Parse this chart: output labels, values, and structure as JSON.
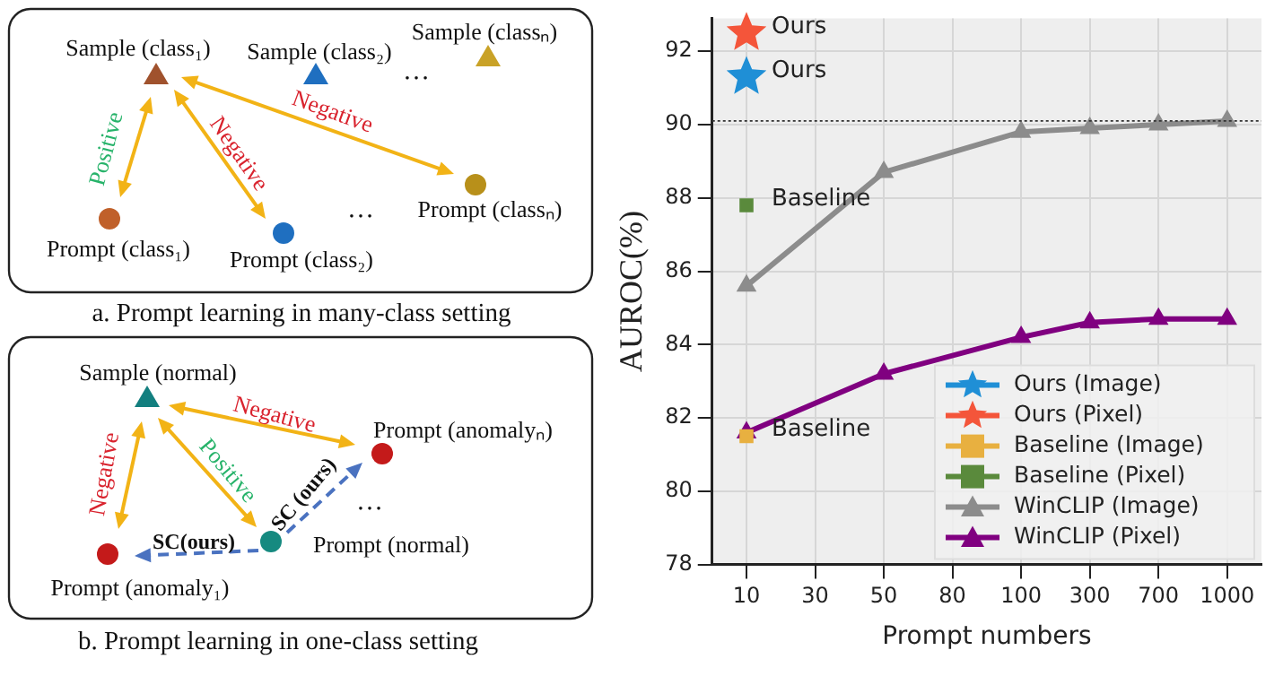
{
  "chart_data": [
    {
      "type": "other",
      "title": "a. Prompt learning in many-class setting",
      "annotations": [
        "Sample (class₁)",
        "Sample (class₂)",
        "Sample (classₙ)",
        "…",
        "Positive",
        "Negative",
        "Negative",
        "Prompt (class₁)",
        "Prompt (class₂)",
        "…",
        "Prompt (classₙ)"
      ]
    },
    {
      "type": "other",
      "title": "b. Prompt learning in one-class setting",
      "annotations": [
        "Sample (normal)",
        "Negative",
        "Negative",
        "Positive",
        "Prompt (anomalyₙ)",
        "…",
        "SC (ours)",
        "SC(ours)",
        "Prompt (normal)",
        "Prompt (anomaly₁)"
      ]
    },
    {
      "type": "line",
      "xlabel": "Prompt numbers",
      "ylabel": "AUROC(%)",
      "categories": [
        "10",
        "30",
        "50",
        "80",
        "100",
        "300",
        "700",
        "1000"
      ],
      "ylim": [
        78,
        92.9
      ],
      "yticks": [
        78,
        80,
        82,
        84,
        86,
        88,
        90,
        92
      ],
      "grid": true,
      "legend": "bottom right",
      "series": [
        {
          "name": "Ours (Image)",
          "type": "scatter",
          "marker": "star",
          "color": "#1f8fd6",
          "x": [
            "10"
          ],
          "values": [
            91.3
          ]
        },
        {
          "name": "Ours (Pixel)",
          "type": "scatter",
          "marker": "star",
          "color": "#f4553a",
          "x": [
            "10"
          ],
          "values": [
            92.5
          ]
        },
        {
          "name": "Baseline (Image)",
          "type": "scatter",
          "marker": "square",
          "color": "#e8b040",
          "x": [
            "10"
          ],
          "values": [
            81.5
          ]
        },
        {
          "name": "Baseline (Pixel)",
          "type": "scatter",
          "marker": "square",
          "color": "#5a8a3c",
          "x": [
            "10"
          ],
          "values": [
            87.8
          ]
        },
        {
          "name": "WinCLIP (Image)",
          "type": "line",
          "marker": "triangle",
          "color": "#8c8c8c",
          "values": [
            85.6,
            null,
            88.7,
            null,
            89.8,
            89.9,
            90.0,
            90.1
          ]
        },
        {
          "name": "WinCLIP (Pixel)",
          "type": "line",
          "marker": "triangle",
          "color": "#800080",
          "values": [
            81.6,
            null,
            83.2,
            null,
            84.2,
            84.6,
            84.7,
            84.7
          ]
        }
      ],
      "ref_lines": [
        {
          "axis": "y",
          "value": 90.1,
          "color": "#333333",
          "line_style": "dotted"
        }
      ],
      "annotations": [
        {
          "text": "Ours",
          "x": "10",
          "y": 92.5
        },
        {
          "text": "Ours",
          "x": "10",
          "y": 91.3
        },
        {
          "text": "Baseline",
          "x": "10",
          "y": 87.8
        },
        {
          "text": "Baseline",
          "x": "10",
          "y": 81.5
        }
      ]
    }
  ]
}
